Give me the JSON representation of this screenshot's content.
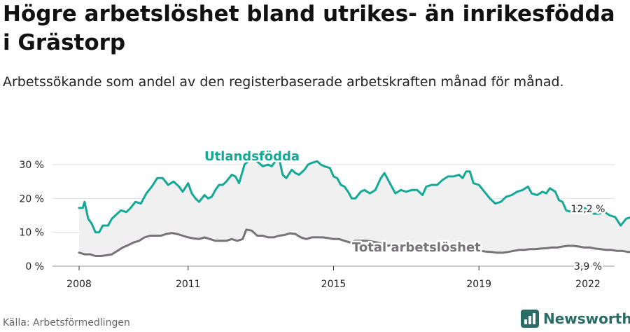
{
  "title": "Högre arbetslöshet bland utrikes- än inrikesfödda i Grästorp",
  "subtitle": "Arbetssökande som andel av den registerbaserade arbetskraften månad för månad.",
  "source": "Källa: Arbetsförmedlingen",
  "brand": "Newsworthy",
  "colors": {
    "foreign": "#14a897",
    "total": "#777379",
    "band": "#f0f0f0",
    "grid": "#dddddd",
    "brand": "#2b6d66"
  },
  "chart_data": {
    "type": "line",
    "title": "Högre arbetslöshet bland utrikes- än inrikesfödda i Grästorp",
    "ylim": [
      0,
      30
    ],
    "xlim": [
      2008,
      2022
    ],
    "grid": true,
    "y_ticks": [
      0,
      10,
      20,
      30
    ],
    "y_tick_labels": [
      "0 %",
      "10 %",
      "20 %",
      "30 %"
    ],
    "x_ticks": [
      2008,
      2011,
      2015,
      2019,
      2022
    ],
    "x_tick_labels": [
      "2008",
      "2011",
      "2015",
      "2019",
      "2022"
    ],
    "series": [
      {
        "name": "Utlandsfödda",
        "color": "#14a897",
        "end_label": "12,2 %",
        "points": [
          [
            2008.0,
            17.2
          ],
          [
            2008.1,
            17.2
          ],
          [
            2008.15,
            19.0
          ],
          [
            2008.25,
            14.0
          ],
          [
            2008.35,
            12.5
          ],
          [
            2008.45,
            10.0
          ],
          [
            2008.55,
            10.0
          ],
          [
            2008.65,
            12.0
          ],
          [
            2008.8,
            12.0
          ],
          [
            2008.9,
            14.0
          ],
          [
            2009.0,
            15.0
          ],
          [
            2009.15,
            16.5
          ],
          [
            2009.3,
            16.0
          ],
          [
            2009.4,
            17.0
          ],
          [
            2009.55,
            19.0
          ],
          [
            2009.7,
            18.5
          ],
          [
            2009.85,
            21.5
          ],
          [
            2010.0,
            23.5
          ],
          [
            2010.15,
            26.0
          ],
          [
            2010.3,
            26.0
          ],
          [
            2010.45,
            24.0
          ],
          [
            2010.6,
            25.0
          ],
          [
            2010.75,
            23.5
          ],
          [
            2010.85,
            22.0
          ],
          [
            2011.0,
            24.5
          ],
          [
            2011.1,
            21.5
          ],
          [
            2011.2,
            20.0
          ],
          [
            2011.3,
            19.0
          ],
          [
            2011.45,
            21.0
          ],
          [
            2011.55,
            20.0
          ],
          [
            2011.65,
            20.5
          ],
          [
            2011.75,
            22.5
          ],
          [
            2011.85,
            24.0
          ],
          [
            2011.95,
            24.0
          ],
          [
            2012.05,
            25.0
          ],
          [
            2012.2,
            27.0
          ],
          [
            2012.3,
            26.5
          ],
          [
            2012.4,
            24.5
          ],
          [
            2012.55,
            30.0
          ],
          [
            2012.7,
            31.5
          ],
          [
            2012.8,
            31.5
          ],
          [
            2012.95,
            30.5
          ],
          [
            2013.05,
            29.5
          ],
          [
            2013.2,
            30.0
          ],
          [
            2013.3,
            29.5
          ],
          [
            2013.4,
            31.0
          ],
          [
            2013.5,
            32.0
          ],
          [
            2013.6,
            27.0
          ],
          [
            2013.7,
            26.0
          ],
          [
            2013.85,
            28.5
          ],
          [
            2013.95,
            27.5
          ],
          [
            2014.05,
            27.0
          ],
          [
            2014.2,
            28.5
          ],
          [
            2014.3,
            30.0
          ],
          [
            2014.4,
            30.5
          ],
          [
            2014.55,
            31.0
          ],
          [
            2014.65,
            30.0
          ],
          [
            2014.75,
            29.5
          ],
          [
            2014.9,
            29.0
          ],
          [
            2015.0,
            26.5
          ],
          [
            2015.1,
            26.0
          ],
          [
            2015.2,
            24.0
          ],
          [
            2015.3,
            23.5
          ],
          [
            2015.4,
            22.0
          ],
          [
            2015.5,
            20.0
          ],
          [
            2015.6,
            20.0
          ],
          [
            2015.75,
            22.0
          ],
          [
            2015.85,
            22.5
          ],
          [
            2016.0,
            21.5
          ],
          [
            2016.15,
            22.5
          ],
          [
            2016.3,
            26.0
          ],
          [
            2016.4,
            27.5
          ],
          [
            2016.55,
            24.5
          ],
          [
            2016.7,
            21.5
          ],
          [
            2016.85,
            22.5
          ],
          [
            2017.0,
            22.0
          ],
          [
            2017.15,
            22.5
          ],
          [
            2017.3,
            22.5
          ],
          [
            2017.45,
            21.0
          ],
          [
            2017.55,
            23.5
          ],
          [
            2017.7,
            24.0
          ],
          [
            2017.85,
            24.0
          ],
          [
            2018.0,
            25.5
          ],
          [
            2018.15,
            26.5
          ],
          [
            2018.3,
            26.5
          ],
          [
            2018.45,
            27.0
          ],
          [
            2018.55,
            26.0
          ],
          [
            2018.65,
            28.0
          ],
          [
            2018.75,
            28.0
          ],
          [
            2018.85,
            24.5
          ],
          [
            2019.0,
            24.0
          ],
          [
            2019.15,
            22.0
          ],
          [
            2019.3,
            20.0
          ],
          [
            2019.45,
            18.5
          ],
          [
            2019.6,
            19.0
          ],
          [
            2019.75,
            20.5
          ],
          [
            2019.9,
            21.0
          ],
          [
            2020.05,
            22.0
          ],
          [
            2020.2,
            22.5
          ],
          [
            2020.35,
            23.5
          ],
          [
            2020.45,
            21.5
          ],
          [
            2020.6,
            21.0
          ],
          [
            2020.75,
            22.0
          ],
          [
            2020.85,
            21.5
          ],
          [
            2020.95,
            23.0
          ],
          [
            2021.1,
            22.0
          ],
          [
            2021.2,
            19.5
          ],
          [
            2021.3,
            19.0
          ],
          [
            2021.4,
            16.5
          ],
          [
            2021.55,
            16.0
          ],
          [
            2021.7,
            17.5
          ],
          [
            2021.85,
            17.5
          ],
          [
            2022.0,
            16.5
          ],
          [
            2022.15,
            15.5
          ],
          [
            2022.3,
            15.5
          ],
          [
            2022.45,
            16.0
          ],
          [
            2022.6,
            15.0
          ],
          [
            2022.75,
            14.5
          ],
          [
            2022.9,
            12.0
          ],
          [
            2023.05,
            14.0
          ],
          [
            2023.2,
            14.5
          ],
          [
            2023.35,
            14.0
          ],
          [
            2023.5,
            12.5
          ],
          [
            2023.6,
            12.2
          ]
        ]
      },
      {
        "name": "Total arbetslöshet",
        "color": "#777379",
        "end_label": "3,9 %",
        "points": [
          [
            2008.0,
            4.0
          ],
          [
            2008.15,
            3.5
          ],
          [
            2008.3,
            3.5
          ],
          [
            2008.45,
            3.0
          ],
          [
            2008.6,
            3.0
          ],
          [
            2008.75,
            3.2
          ],
          [
            2008.9,
            3.5
          ],
          [
            2009.05,
            4.5
          ],
          [
            2009.2,
            5.5
          ],
          [
            2009.35,
            6.2
          ],
          [
            2009.5,
            7.0
          ],
          [
            2009.65,
            7.5
          ],
          [
            2009.8,
            8.5
          ],
          [
            2009.95,
            9.0
          ],
          [
            2010.1,
            9.0
          ],
          [
            2010.25,
            9.0
          ],
          [
            2010.4,
            9.5
          ],
          [
            2010.55,
            9.8
          ],
          [
            2010.7,
            9.5
          ],
          [
            2010.85,
            9.0
          ],
          [
            2011.0,
            8.5
          ],
          [
            2011.15,
            8.2
          ],
          [
            2011.3,
            8.0
          ],
          [
            2011.45,
            8.5
          ],
          [
            2011.6,
            8.0
          ],
          [
            2011.75,
            7.5
          ],
          [
            2011.9,
            7.5
          ],
          [
            2012.05,
            7.5
          ],
          [
            2012.2,
            8.0
          ],
          [
            2012.35,
            7.5
          ],
          [
            2012.5,
            8.0
          ],
          [
            2012.6,
            10.8
          ],
          [
            2012.75,
            10.5
          ],
          [
            2012.9,
            9.0
          ],
          [
            2013.05,
            9.0
          ],
          [
            2013.2,
            8.5
          ],
          [
            2013.35,
            8.5
          ],
          [
            2013.5,
            9.0
          ],
          [
            2013.65,
            9.2
          ],
          [
            2013.8,
            9.7
          ],
          [
            2013.95,
            9.5
          ],
          [
            2014.1,
            8.5
          ],
          [
            2014.25,
            8.0
          ],
          [
            2014.4,
            8.5
          ],
          [
            2014.55,
            8.5
          ],
          [
            2014.7,
            8.5
          ],
          [
            2014.85,
            8.3
          ],
          [
            2015.0,
            8.0
          ],
          [
            2015.15,
            8.0
          ],
          [
            2015.3,
            7.5
          ],
          [
            2015.45,
            7.0
          ],
          [
            2015.6,
            7.5
          ],
          [
            2015.75,
            7.5
          ],
          [
            2015.9,
            7.5
          ],
          [
            2016.05,
            7.3
          ],
          [
            2016.2,
            7.0
          ],
          [
            2016.35,
            6.5
          ],
          [
            2016.5,
            6.0
          ],
          [
            2016.65,
            6.5
          ],
          [
            2016.8,
            6.2
          ],
          [
            2016.95,
            6.0
          ],
          [
            2017.1,
            6.0
          ],
          [
            2017.25,
            5.8
          ],
          [
            2017.4,
            5.8
          ],
          [
            2017.55,
            5.6
          ],
          [
            2017.7,
            5.5
          ],
          [
            2017.85,
            5.4
          ],
          [
            2018.0,
            5.3
          ],
          [
            2018.15,
            5.3
          ],
          [
            2018.3,
            5.2
          ],
          [
            2018.45,
            5.0
          ],
          [
            2018.6,
            5.0
          ],
          [
            2018.75,
            4.8
          ],
          [
            2018.9,
            4.6
          ],
          [
            2019.05,
            4.5
          ],
          [
            2019.2,
            4.3
          ],
          [
            2019.35,
            4.2
          ],
          [
            2019.5,
            4.0
          ],
          [
            2019.65,
            4.0
          ],
          [
            2019.8,
            4.2
          ],
          [
            2019.95,
            4.5
          ],
          [
            2020.1,
            4.8
          ],
          [
            2020.25,
            4.8
          ],
          [
            2020.4,
            5.0
          ],
          [
            2020.55,
            5.0
          ],
          [
            2020.7,
            5.2
          ],
          [
            2020.85,
            5.3
          ],
          [
            2021.0,
            5.5
          ],
          [
            2021.15,
            5.5
          ],
          [
            2021.3,
            5.8
          ],
          [
            2021.45,
            6.0
          ],
          [
            2021.6,
            6.0
          ],
          [
            2021.75,
            5.8
          ],
          [
            2021.9,
            5.5
          ],
          [
            2022.05,
            5.5
          ],
          [
            2022.2,
            5.2
          ],
          [
            2022.35,
            5.0
          ],
          [
            2022.5,
            4.8
          ],
          [
            2022.65,
            4.8
          ],
          [
            2022.8,
            4.5
          ],
          [
            2022.95,
            4.5
          ],
          [
            2023.1,
            4.2
          ],
          [
            2023.25,
            4.2
          ],
          [
            2023.4,
            4.0
          ],
          [
            2023.6,
            3.9
          ]
        ]
      }
    ],
    "annotations": [
      {
        "text": "Utlandsfödda",
        "series": "Utlandsfödda"
      },
      {
        "text": "Total arbetslöshet",
        "series": "Total arbetslöshet"
      }
    ]
  }
}
